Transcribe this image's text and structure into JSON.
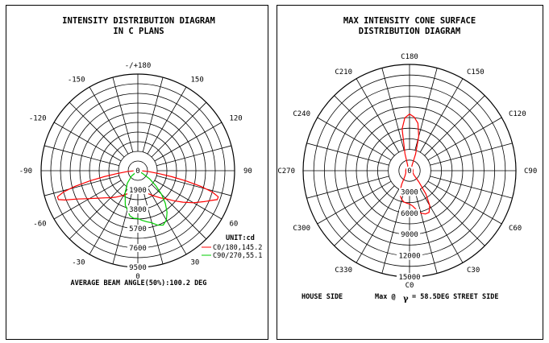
{
  "chart_data": [
    {
      "type": "polar",
      "title_line1": "INTENSITY DISTRIBUTION DIAGRAM",
      "title_line2": "IN C PLANS",
      "angle_labels": [
        "-/+180",
        "150",
        "120",
        "90",
        "60",
        "30",
        "0",
        "-30",
        "-60",
        "-90",
        "-120",
        "-150"
      ],
      "radial_labels": [
        "0",
        "1900",
        "3800",
        "5700",
        "7600",
        "9500"
      ],
      "r_max": 9500,
      "unit": "UNIT:cd",
      "footer": "AVERAGE BEAM ANGLE(50%):100.2 DEG",
      "colors": {
        "C0/180": "#ff0000",
        "C90/270": "#00cc00"
      },
      "series": [
        {
          "name": "C0/180,145.2",
          "color": "#ff0000",
          "points": [
            [
              -88,
              420
            ],
            [
              -85,
              1100
            ],
            [
              -82,
              2200
            ],
            [
              -80,
              3400
            ],
            [
              -78,
              4800
            ],
            [
              -76,
              6400
            ],
            [
              -74,
              7600
            ],
            [
              -72,
              8300
            ],
            [
              -70,
              8300
            ],
            [
              -68,
              7700
            ],
            [
              -65,
              6600
            ],
            [
              -60,
              5500
            ],
            [
              -55,
              4700
            ],
            [
              -50,
              4150
            ],
            [
              -45,
              3750
            ],
            [
              -40,
              3400
            ],
            [
              -30,
              2800
            ],
            [
              -20,
              2300
            ],
            [
              -10,
              2050
            ],
            [
              0,
              1950
            ],
            [
              10,
              2050
            ],
            [
              20,
              2300
            ],
            [
              30,
              2800
            ],
            [
              40,
              3500
            ],
            [
              45,
              3900
            ],
            [
              50,
              4600
            ],
            [
              55,
              5400
            ],
            [
              60,
              6300
            ],
            [
              65,
              7200
            ],
            [
              68,
              7800
            ],
            [
              70,
              8300
            ],
            [
              72,
              8300
            ],
            [
              74,
              7600
            ],
            [
              76,
              6400
            ],
            [
              78,
              4800
            ],
            [
              80,
              3400
            ],
            [
              82,
              2200
            ],
            [
              85,
              1100
            ],
            [
              88,
              420
            ]
          ]
        },
        {
          "name": "C90/270,55.1",
          "color": "#00cc00",
          "points": [
            [
              -60,
              0
            ],
            [
              -50,
              800
            ],
            [
              -40,
              1600
            ],
            [
              -30,
              2500
            ],
            [
              -20,
              3600
            ],
            [
              -10,
              4500
            ],
            [
              -5,
              4700
            ],
            [
              0,
              4700
            ],
            [
              5,
              4900
            ],
            [
              10,
              5100
            ],
            [
              15,
              5300
            ],
            [
              20,
              5700
            ],
            [
              25,
              5900
            ],
            [
              30,
              5600
            ],
            [
              35,
              5000
            ],
            [
              40,
              4200
            ],
            [
              45,
              3300
            ],
            [
              50,
              2300
            ],
            [
              55,
              1400
            ],
            [
              60,
              500
            ],
            [
              65,
              0
            ]
          ]
        }
      ]
    },
    {
      "type": "polar",
      "title_line1": "MAX INTENSITY CONE SURFACE",
      "title_line2": "DISTRIBUTION DIAGRAM",
      "angle_labels": [
        "C180",
        "C150",
        "C120",
        "C90",
        "C60",
        "C30",
        "C0",
        "C330",
        "C300",
        "C270",
        "C240",
        "C210"
      ],
      "radial_labels": [
        "0",
        "3000",
        "6000",
        "9000",
        "12000",
        "15000"
      ],
      "r_max": 15000,
      "left_label": "HOUSE SIDE",
      "max_prefix": "Max @",
      "gamma_symbol": "γ",
      "max_suffix": "= 58.5DEG STREET SIDE",
      "series": [
        {
          "name": "C-plane distribution",
          "color": "#ff0000",
          "points": [
            [
              -160,
              700
            ],
            [
              -165,
              2500
            ],
            [
              -170,
              6000
            ],
            [
              -175,
              7500
            ],
            [
              180,
              8000
            ],
            [
              175,
              7600
            ],
            [
              170,
              6800
            ],
            [
              165,
              5000
            ],
            [
              160,
              2500
            ],
            [
              155,
              800
            ],
            [
              140,
              500
            ],
            [
              120,
              480
            ],
            [
              100,
              480
            ],
            [
              80,
              500
            ],
            [
              60,
              520
            ],
            [
              45,
              900
            ],
            [
              40,
              2000
            ],
            [
              35,
              4000
            ],
            [
              30,
              5700
            ],
            [
              25,
              6500
            ],
            [
              20,
              6500
            ],
            [
              15,
              6200
            ],
            [
              10,
              5600
            ],
            [
              5,
              5000
            ],
            [
              0,
              4700
            ],
            [
              -5,
              4600
            ],
            [
              -10,
              4500
            ],
            [
              -15,
              4200
            ],
            [
              -20,
              3800
            ],
            [
              -25,
              3200
            ],
            [
              -30,
              2200
            ],
            [
              -40,
              1000
            ],
            [
              -60,
              600
            ],
            [
              -90,
              550
            ],
            [
              -120,
              520
            ],
            [
              -140,
              550
            ],
            [
              -160,
              700
            ]
          ]
        }
      ]
    }
  ]
}
